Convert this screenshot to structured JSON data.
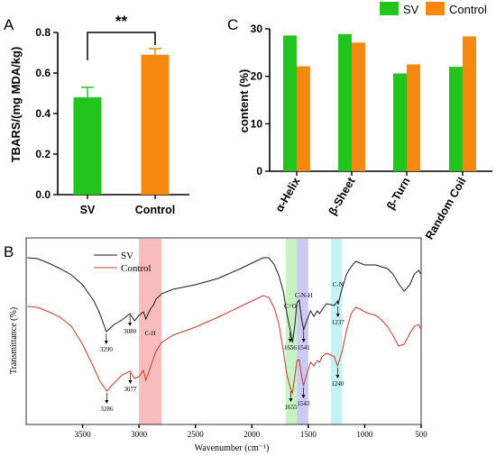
{
  "colors": {
    "sv": "#22c41e",
    "control": "#f5880f",
    "ir_sv": "#1a1a1a",
    "ir_control": "#c0392b"
  },
  "panel_labels": {
    "a": "A",
    "b": "B",
    "c": "C"
  },
  "chart_data": [
    {
      "id": "A",
      "type": "bar",
      "categories": [
        "SV",
        "Control"
      ],
      "values": [
        0.48,
        0.69
      ],
      "errors": [
        0.05,
        0.03
      ],
      "ylabel": "TBARS/(mg MDA/kg)",
      "ylim": [
        0,
        0.8
      ],
      "yticks": [
        "0.0",
        "0.2",
        "0.4",
        "0.6",
        "0.8"
      ],
      "significance": "**"
    },
    {
      "id": "C",
      "type": "bar",
      "categories": [
        "α-Helix",
        "β-Sheet",
        "β-Turn",
        "Random Coil"
      ],
      "series": [
        {
          "name": "SV",
          "values": [
            28.6,
            28.9,
            20.6,
            22.0
          ]
        },
        {
          "name": "Control",
          "values": [
            22.1,
            27.1,
            22.5,
            28.4
          ]
        }
      ],
      "ylabel": "content (%)",
      "ylim": [
        0,
        30
      ],
      "yticks": [
        "0",
        "10",
        "20",
        "30"
      ],
      "legend_position": "top"
    },
    {
      "id": "B",
      "type": "line",
      "xlabel": "Wavenumber (cm⁻¹)",
      "ylabel": "Transmittance (%)",
      "xlim": [
        4000,
        500
      ],
      "x_reversed": true,
      "xticks": [
        "3500",
        "3000",
        "2500",
        "2000",
        "1500",
        "1000",
        "500"
      ],
      "series": [
        {
          "name": "SV",
          "x": [
            3990,
            3900,
            3800,
            3700,
            3600,
            3500,
            3400,
            3350,
            3290,
            3220,
            3150,
            3080,
            3040,
            3000,
            2960,
            2940,
            2900,
            2870,
            2850,
            2800,
            2700,
            2500,
            2300,
            2100,
            2000,
            1900,
            1850,
            1800,
            1760,
            1720,
            1690,
            1660,
            1640,
            1620,
            1600,
            1580,
            1560,
            1541,
            1520,
            1480,
            1450,
            1420,
            1400,
            1380,
            1340,
            1300,
            1270,
            1240,
            1237,
            1200,
            1160,
            1120,
            1080,
            1040,
            1000,
            960,
            900,
            850,
            800,
            750,
            700,
            650,
            600,
            560,
            520,
            505
          ],
          "y": [
            286,
            287,
            292,
            298,
            305,
            316,
            334,
            347,
            368,
            360,
            355,
            348,
            356,
            350,
            346,
            354,
            343,
            338,
            332,
            326,
            321,
            316,
            309,
            298,
            292,
            286,
            286,
            294,
            306,
            324,
            348,
            366,
            380,
            362,
            336,
            333,
            353,
            366,
            358,
            345,
            351,
            345,
            348,
            344,
            337,
            338,
            339,
            334,
            338,
            320,
            304,
            296,
            290,
            292,
            294,
            294,
            294,
            296,
            298,
            304,
            315,
            323,
            316,
            304,
            300,
            304
          ]
        },
        {
          "name": "Control",
          "x": [
            3990,
            3900,
            3800,
            3700,
            3600,
            3500,
            3400,
            3350,
            3286,
            3220,
            3150,
            3077,
            3040,
            3000,
            2960,
            2940,
            2900,
            2870,
            2850,
            2800,
            2700,
            2500,
            2300,
            2100,
            2000,
            1900,
            1850,
            1800,
            1760,
            1720,
            1690,
            1655,
            1640,
            1620,
            1600,
            1580,
            1560,
            1543,
            1520,
            1480,
            1450,
            1420,
            1400,
            1380,
            1340,
            1300,
            1270,
            1240,
            1200,
            1160,
            1120,
            1080,
            1040,
            1000,
            960,
            900,
            850,
            800,
            750,
            700,
            650,
            600,
            560,
            520,
            505
          ],
          "y": [
            340,
            341,
            346,
            352,
            362,
            382,
            408,
            422,
            434,
            425,
            416,
            412,
            420,
            418,
            411,
            422,
            408,
            397,
            390,
            380,
            372,
            363,
            352,
            340,
            334,
            328,
            330,
            342,
            360,
            390,
            416,
            432,
            436,
            419,
            400,
            399,
            416,
            428,
            418,
            402,
            406,
            400,
            402,
            396,
            392,
            394,
            396,
            406,
            390,
            366,
            348,
            341,
            343,
            346,
            348,
            350,
            355,
            362,
            372,
            384,
            382,
            370,
            362,
            360,
            365
          ]
        }
      ],
      "bands": [
        {
          "from": 3000,
          "to": 2800,
          "color": "#f6a5a5"
        },
        {
          "from": 1700,
          "to": 1600,
          "color": "#b5eeb0"
        },
        {
          "from": 1600,
          "to": 1500,
          "color": "#b9b8f2"
        },
        {
          "from": 1300,
          "to": 1200,
          "color": "#b2eef2"
        }
      ],
      "annotations": [
        {
          "text": "3290",
          "x": 3290,
          "series": "SV",
          "below": true
        },
        {
          "text": "3080",
          "x": 3080,
          "series": "SV",
          "below": true
        },
        {
          "text": "1656",
          "x": 1660,
          "series": "SV",
          "below": true
        },
        {
          "text": "1541",
          "x": 1541,
          "series": "SV",
          "below": true
        },
        {
          "text": "1237",
          "x": 1237,
          "series": "SV",
          "below": true
        },
        {
          "text": "3286",
          "x": 3286,
          "series": "Control",
          "below": true
        },
        {
          "text": "3077",
          "x": 3077,
          "series": "Control",
          "below": true
        },
        {
          "text": "1655",
          "x": 1655,
          "series": "Control",
          "below": true
        },
        {
          "text": "1543",
          "x": 1543,
          "series": "Control",
          "below": true
        },
        {
          "text": "1240",
          "x": 1240,
          "series": "Control",
          "below": true
        }
      ],
      "group_labels": [
        {
          "text": "C-H",
          "x": 2900
        },
        {
          "text": "C=O",
          "x": 1660
        },
        {
          "text": "C-N-H",
          "x": 1541
        },
        {
          "text": "C-N",
          "x": 1237
        }
      ]
    }
  ]
}
